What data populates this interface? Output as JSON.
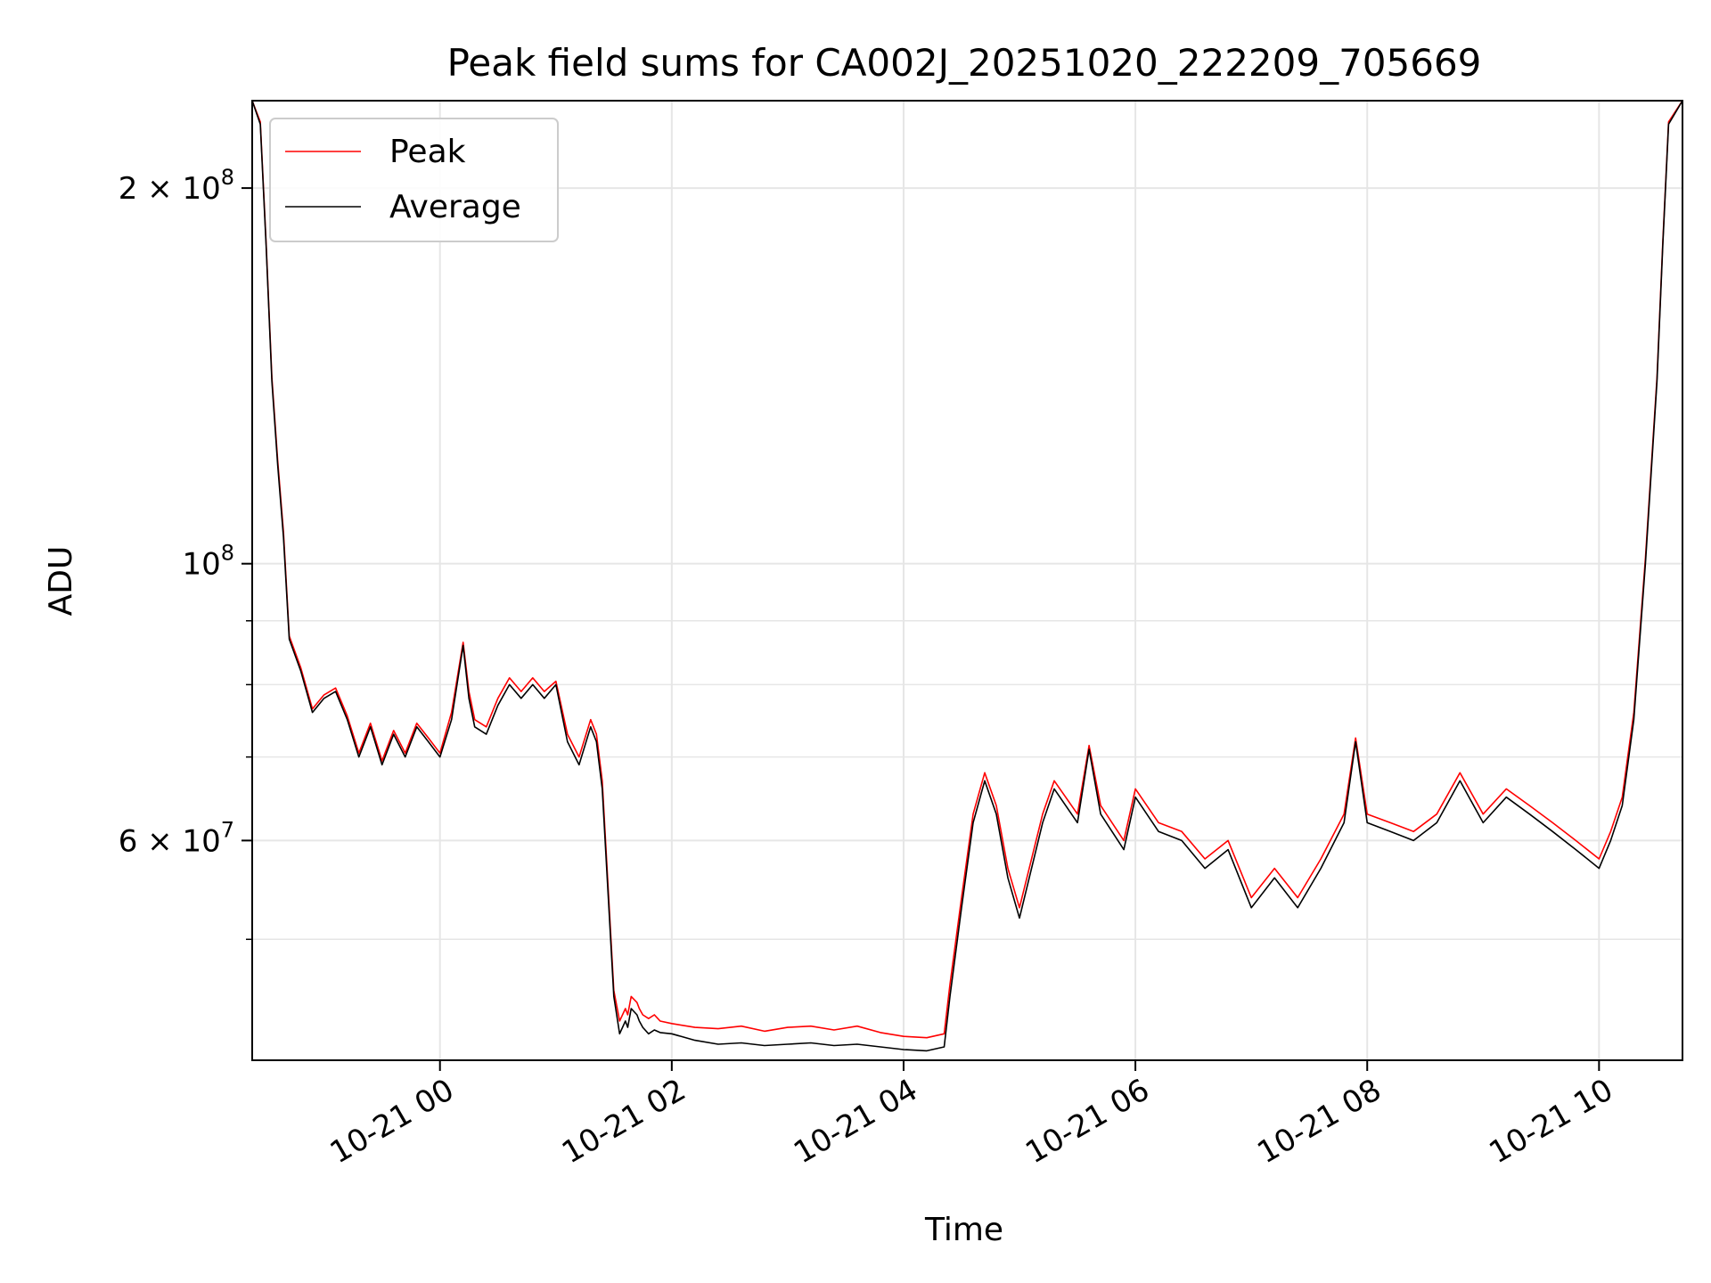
{
  "chart_data": {
    "type": "line",
    "title": "Peak field sums for CA002J_20251020_222209_705669",
    "xlabel": "Time",
    "ylabel": "ADU",
    "yscale": "log",
    "xlim": [
      -1.62,
      10.72
    ],
    "ylim": [
      40000000,
      235000000
    ],
    "grid": true,
    "legend": {
      "loc": "upper-left",
      "entries": [
        "Peak",
        "Average"
      ]
    },
    "x_ticks": [
      {
        "value": 0,
        "label": "10-21 00"
      },
      {
        "value": 2,
        "label": "10-21 02"
      },
      {
        "value": 4,
        "label": "10-21 04"
      },
      {
        "value": 6,
        "label": "10-21 06"
      },
      {
        "value": 8,
        "label": "10-21 08"
      },
      {
        "value": 10,
        "label": "10-21 10"
      }
    ],
    "y_ticks_major": [
      {
        "value": 200000000,
        "label_mantissa": "2 × 10",
        "label_exp": "8"
      },
      {
        "value": 100000000,
        "label_mantissa": "10",
        "label_exp": "8"
      },
      {
        "value": 60000000,
        "label_mantissa": "6 × 10",
        "label_exp": "7"
      }
    ],
    "y_ticks_minor": [
      50000000,
      70000000,
      80000000,
      90000000
    ],
    "series": [
      {
        "name": "Average",
        "color": "#000000",
        "x": [
          -1.62,
          -1.55,
          -1.5,
          -1.45,
          -1.4,
          -1.35,
          -1.3,
          -1.2,
          -1.1,
          -1.0,
          -0.9,
          -0.8,
          -0.7,
          -0.6,
          -0.5,
          -0.4,
          -0.3,
          -0.2,
          -0.1,
          0.0,
          0.1,
          0.2,
          0.25,
          0.3,
          0.4,
          0.5,
          0.6,
          0.7,
          0.8,
          0.9,
          1.0,
          1.1,
          1.2,
          1.3,
          1.35,
          1.4,
          1.5,
          1.55,
          1.6,
          1.62,
          1.65,
          1.7,
          1.72,
          1.75,
          1.8,
          1.85,
          1.9,
          2.0,
          2.2,
          2.4,
          2.6,
          2.8,
          3.0,
          3.2,
          3.4,
          3.6,
          3.8,
          4.0,
          4.2,
          4.35,
          4.4,
          4.5,
          4.6,
          4.7,
          4.8,
          4.9,
          5.0,
          5.2,
          5.3,
          5.5,
          5.6,
          5.7,
          5.9,
          6.0,
          6.2,
          6.4,
          6.6,
          6.8,
          7.0,
          7.2,
          7.4,
          7.6,
          7.8,
          7.9,
          8.0,
          8.2,
          8.4,
          8.6,
          8.8,
          9.0,
          9.2,
          9.4,
          9.6,
          9.8,
          10.0,
          10.1,
          10.2,
          10.3,
          10.4,
          10.5,
          10.55,
          10.6,
          10.72
        ],
        "y": [
          235000000,
          225000000,
          180000000,
          140000000,
          120000000,
          105000000,
          87000000,
          82000000,
          76000000,
          78000000,
          79000000,
          75000000,
          70000000,
          74000000,
          69000000,
          73000000,
          70000000,
          74000000,
          72000000,
          70000000,
          75000000,
          86000000,
          78000000,
          74000000,
          73000000,
          77000000,
          80000000,
          78000000,
          80000000,
          78000000,
          80000000,
          72000000,
          69000000,
          74000000,
          72000000,
          66000000,
          45000000,
          42000000,
          43000000,
          42500000,
          44000000,
          43500000,
          43000000,
          42500000,
          42000000,
          42300000,
          42100000,
          42000000,
          41500000,
          41200000,
          41300000,
          41100000,
          41200000,
          41300000,
          41100000,
          41200000,
          41000000,
          40800000,
          40700000,
          41000000,
          45000000,
          53000000,
          62000000,
          67000000,
          63000000,
          56000000,
          52000000,
          62000000,
          66000000,
          62000000,
          71000000,
          63000000,
          59000000,
          65000000,
          61000000,
          60000000,
          57000000,
          59000000,
          53000000,
          56000000,
          53000000,
          57000000,
          62000000,
          72000000,
          62000000,
          61000000,
          60000000,
          62000000,
          67000000,
          62000000,
          65000000,
          63000000,
          61000000,
          59000000,
          57000000,
          60000000,
          64000000,
          75000000,
          100000000,
          140000000,
          180000000,
          225000000,
          235000000
        ]
      },
      {
        "name": "Peak",
        "color": "#ff0000",
        "x": [
          -1.62,
          -1.55,
          -1.5,
          -1.45,
          -1.4,
          -1.35,
          -1.3,
          -1.2,
          -1.1,
          -1.0,
          -0.9,
          -0.8,
          -0.7,
          -0.6,
          -0.5,
          -0.4,
          -0.3,
          -0.2,
          -0.1,
          0.0,
          0.1,
          0.2,
          0.25,
          0.3,
          0.4,
          0.5,
          0.6,
          0.7,
          0.8,
          0.9,
          1.0,
          1.1,
          1.2,
          1.3,
          1.35,
          1.4,
          1.5,
          1.55,
          1.6,
          1.62,
          1.65,
          1.7,
          1.72,
          1.75,
          1.8,
          1.85,
          1.9,
          2.0,
          2.2,
          2.4,
          2.6,
          2.8,
          3.0,
          3.2,
          3.4,
          3.6,
          3.8,
          4.0,
          4.2,
          4.35,
          4.4,
          4.5,
          4.6,
          4.7,
          4.8,
          4.9,
          5.0,
          5.2,
          5.3,
          5.5,
          5.6,
          5.7,
          5.9,
          6.0,
          6.2,
          6.4,
          6.6,
          6.8,
          7.0,
          7.2,
          7.4,
          7.6,
          7.8,
          7.9,
          8.0,
          8.2,
          8.4,
          8.6,
          8.8,
          9.0,
          9.2,
          9.4,
          9.6,
          9.8,
          10.0,
          10.1,
          10.2,
          10.3,
          10.4,
          10.5,
          10.55,
          10.6,
          10.72
        ],
        "y": [
          235000000,
          226000000,
          181000000,
          141000000,
          121000000,
          106000000,
          87500000,
          82500000,
          76500000,
          78500000,
          79500000,
          75500000,
          70500000,
          74500000,
          69500000,
          73500000,
          70500000,
          74500000,
          72500000,
          70500000,
          76000000,
          86500000,
          79000000,
          75000000,
          74000000,
          78000000,
          81000000,
          79000000,
          81000000,
          79000000,
          80500000,
          73000000,
          70000000,
          75000000,
          73000000,
          67000000,
          45500000,
          43000000,
          44000000,
          43500000,
          45000000,
          44500000,
          44000000,
          43500000,
          43200000,
          43500000,
          43000000,
          42800000,
          42500000,
          42400000,
          42600000,
          42200000,
          42500000,
          42600000,
          42300000,
          42600000,
          42100000,
          41800000,
          41700000,
          42000000,
          46000000,
          54000000,
          63000000,
          68000000,
          64000000,
          57000000,
          53000000,
          63000000,
          67000000,
          63000000,
          71500000,
          64000000,
          60000000,
          66000000,
          62000000,
          61000000,
          58000000,
          60000000,
          54000000,
          57000000,
          54000000,
          58000000,
          63000000,
          72500000,
          63000000,
          62000000,
          61000000,
          63000000,
          68000000,
          63000000,
          66000000,
          64000000,
          62000000,
          60000000,
          58000000,
          61000000,
          65000000,
          76000000,
          101000000,
          141000000,
          181000000,
          226000000,
          235000000
        ]
      }
    ]
  }
}
